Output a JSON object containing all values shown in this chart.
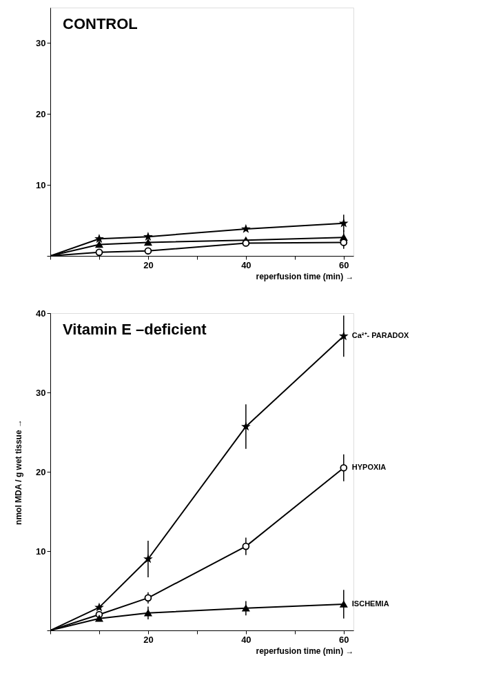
{
  "chart_data": [
    {
      "type": "line",
      "title": "CONTROL",
      "xlabel": "reperfusion time (min) →",
      "x": [
        0,
        10,
        20,
        40,
        60
      ],
      "xlim": [
        0,
        62
      ],
      "ylim": [
        0,
        35
      ],
      "xticks": [
        {
          "value": 0,
          "label": null
        },
        {
          "value": 10,
          "label": null
        },
        20,
        {
          "value": 30,
          "label": null
        },
        40,
        {
          "value": 50,
          "label": null
        },
        60
      ],
      "yticks": [
        {
          "value": 0,
          "label": null
        },
        10,
        20,
        30
      ],
      "grid": false,
      "legend": false,
      "series": [
        {
          "color": "#000000",
          "marker": "star",
          "values": [
            0,
            2.4,
            2.7,
            3.8,
            4.6
          ],
          "errors": [
            null,
            null,
            null,
            null,
            1.2
          ]
        },
        {
          "color": "#000000",
          "marker": "triangle",
          "values": [
            0,
            1.6,
            1.9,
            2.2,
            2.6
          ],
          "errors": [
            null,
            null,
            null,
            null,
            1.0
          ]
        },
        {
          "color": "#000000",
          "marker": "circle",
          "values": [
            0,
            0.5,
            0.7,
            1.8,
            1.9
          ],
          "errors": [
            null,
            null,
            null,
            null,
            0.9
          ]
        }
      ]
    },
    {
      "type": "line",
      "title": "Vitamin E –deficient",
      "xlabel": "reperfusion time (min) →",
      "ylabel": "nmol MDA / g wet tissue →",
      "x": [
        0,
        10,
        20,
        40,
        60
      ],
      "xlim": [
        0,
        62
      ],
      "ylim": [
        0,
        40
      ],
      "xticks": [
        {
          "value": 0,
          "label": null
        },
        {
          "value": 10,
          "label": null
        },
        20,
        {
          "value": 30,
          "label": null
        },
        40,
        {
          "value": 50,
          "label": null
        },
        60
      ],
      "yticks": [
        {
          "value": 0,
          "label": null
        },
        10,
        20,
        30,
        40
      ],
      "grid": false,
      "legend": false,
      "series": [
        {
          "name": "Ca²⁺- PARADOX",
          "color": "#000000",
          "marker": "star",
          "values": [
            0,
            2.9,
            9.0,
            25.7,
            37.1
          ],
          "errors": [
            null,
            null,
            2.3,
            2.8,
            2.6
          ]
        },
        {
          "name": "HYPOXIA",
          "color": "#000000",
          "marker": "circle",
          "values": [
            0,
            2.0,
            4.1,
            10.6,
            20.5
          ],
          "errors": [
            null,
            null,
            0.7,
            1.1,
            1.7
          ]
        },
        {
          "name": "ISCHEMIA",
          "color": "#000000",
          "marker": "triangle",
          "values": [
            0,
            1.5,
            2.2,
            2.8,
            3.3
          ],
          "errors": [
            null,
            null,
            0.8,
            0.9,
            1.8
          ]
        }
      ]
    }
  ]
}
